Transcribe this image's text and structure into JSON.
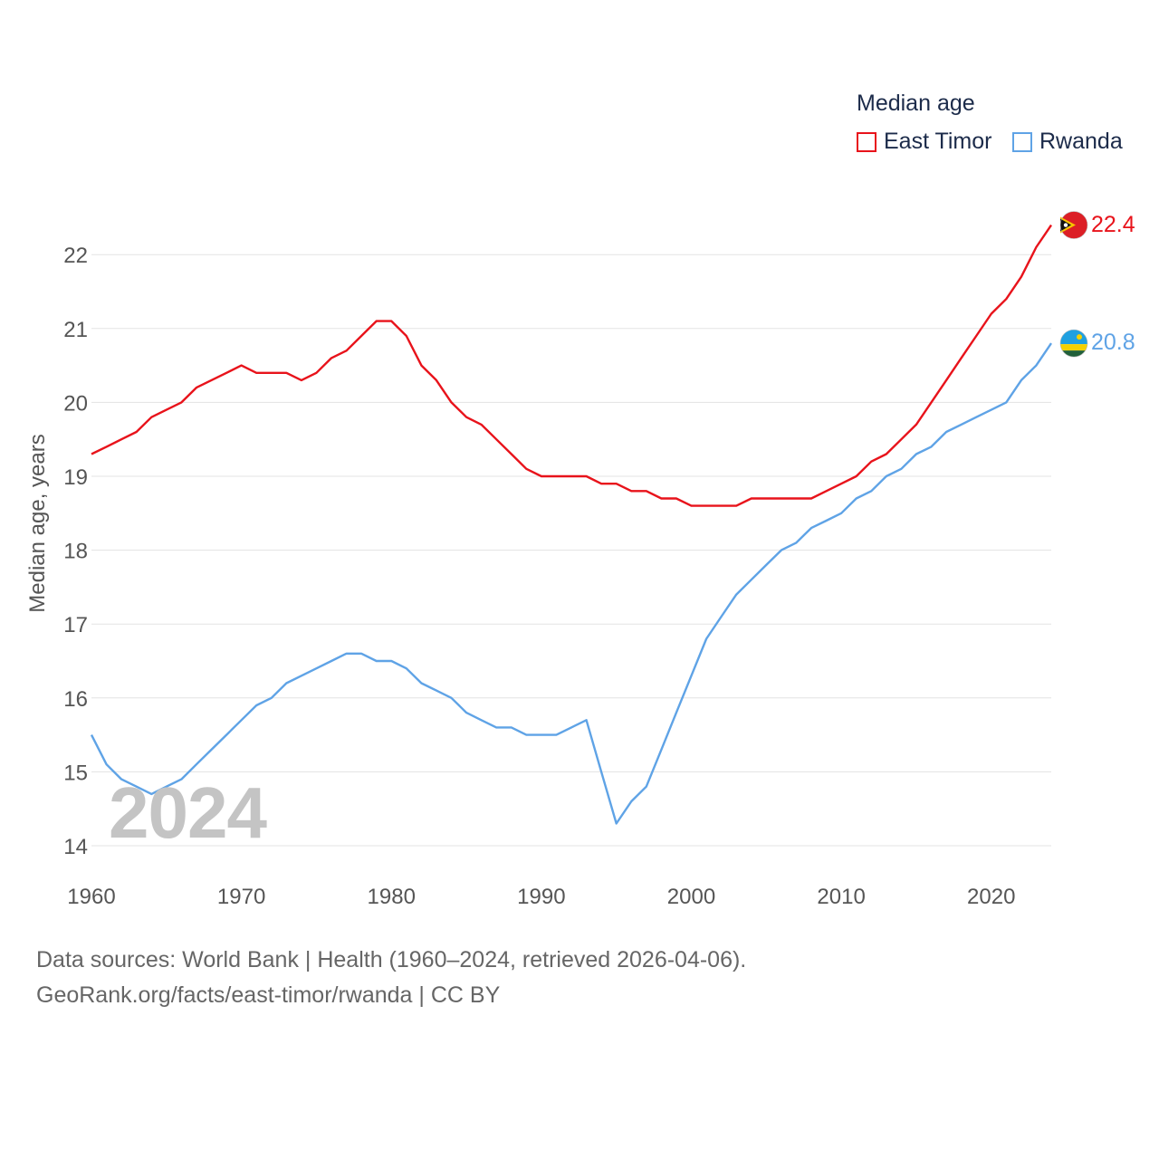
{
  "chart_data": {
    "type": "line",
    "title": "",
    "legend_title": "Median age",
    "legend_position": "top-right",
    "xlabel": "",
    "ylabel": "Median age, years",
    "xlim": [
      1960,
      2024
    ],
    "ylim": [
      14,
      22.8
    ],
    "x_ticks": [
      1960,
      1970,
      1980,
      1990,
      2000,
      2010,
      2020
    ],
    "y_ticks": [
      14,
      15,
      16,
      17,
      18,
      19,
      20,
      21,
      22
    ],
    "grid": true,
    "year_watermark": "2024",
    "x": [
      1960,
      1961,
      1962,
      1963,
      1964,
      1965,
      1966,
      1967,
      1968,
      1969,
      1970,
      1971,
      1972,
      1973,
      1974,
      1975,
      1976,
      1977,
      1978,
      1979,
      1980,
      1981,
      1982,
      1983,
      1984,
      1985,
      1986,
      1987,
      1988,
      1989,
      1990,
      1991,
      1992,
      1993,
      1994,
      1995,
      1996,
      1997,
      1998,
      1999,
      2000,
      2001,
      2002,
      2003,
      2004,
      2005,
      2006,
      2007,
      2008,
      2009,
      2010,
      2011,
      2012,
      2013,
      2014,
      2015,
      2016,
      2017,
      2018,
      2019,
      2020,
      2021,
      2022,
      2023,
      2024
    ],
    "series": [
      {
        "name": "East Timor",
        "color": "#e8131b",
        "end_label": "22.4",
        "flag": "east-timor-flag-icon",
        "values": [
          19.3,
          19.4,
          19.5,
          19.6,
          19.8,
          19.9,
          20.0,
          20.2,
          20.3,
          20.4,
          20.5,
          20.4,
          20.4,
          20.4,
          20.3,
          20.4,
          20.6,
          20.7,
          20.9,
          21.1,
          21.1,
          20.9,
          20.5,
          20.3,
          20.0,
          19.8,
          19.7,
          19.5,
          19.3,
          19.1,
          19.0,
          19.0,
          19.0,
          19.0,
          18.9,
          18.9,
          18.8,
          18.8,
          18.7,
          18.7,
          18.6,
          18.6,
          18.6,
          18.6,
          18.7,
          18.7,
          18.7,
          18.7,
          18.7,
          18.8,
          18.9,
          19.0,
          19.2,
          19.3,
          19.5,
          19.7,
          20.0,
          20.3,
          20.6,
          20.9,
          21.2,
          21.4,
          21.7,
          22.1,
          22.4
        ]
      },
      {
        "name": "Rwanda",
        "color": "#5fa3e6",
        "end_label": "20.8",
        "flag": "rwanda-flag-icon",
        "values": [
          15.5,
          15.1,
          14.9,
          14.8,
          14.7,
          14.8,
          14.9,
          15.1,
          15.3,
          15.5,
          15.7,
          15.9,
          16.0,
          16.2,
          16.3,
          16.4,
          16.5,
          16.6,
          16.6,
          16.5,
          16.5,
          16.4,
          16.2,
          16.1,
          16.0,
          15.8,
          15.7,
          15.6,
          15.6,
          15.5,
          15.5,
          15.5,
          15.6,
          15.7,
          15.0,
          14.3,
          14.6,
          14.8,
          15.3,
          15.8,
          16.3,
          16.8,
          17.1,
          17.4,
          17.6,
          17.8,
          18.0,
          18.1,
          18.3,
          18.4,
          18.5,
          18.7,
          18.8,
          19.0,
          19.1,
          19.3,
          19.4,
          19.6,
          19.7,
          19.8,
          19.9,
          20.0,
          20.3,
          20.5,
          20.8
        ]
      }
    ]
  },
  "footer": {
    "source_line": "Data sources: World Bank | Health (1960–2024, retrieved 2026-04-06).",
    "credit_line": "GeoRank.org/facts/east-timor/rwanda | CC BY"
  }
}
